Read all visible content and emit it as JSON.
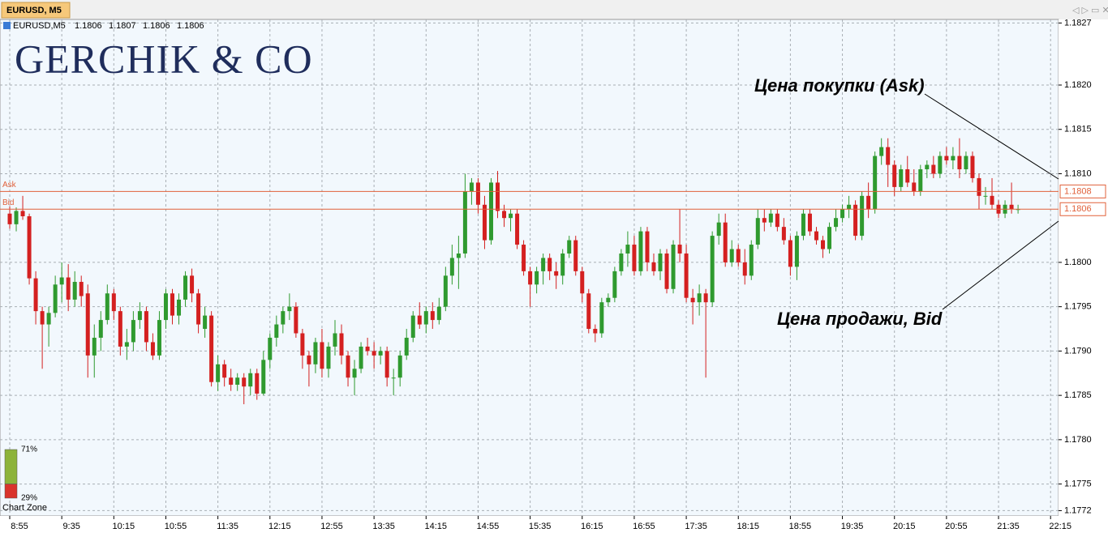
{
  "header": {
    "tab": "EURUSD, M5"
  },
  "chart_data": {
    "type": "candlestick",
    "symbol": "EURUSD,M5",
    "last_bar": [
      1.1806,
      1.1807,
      1.1806,
      1.1806
    ],
    "logo": "GERCHIK & CO",
    "categories": [
      "8:55",
      null,
      null,
      null,
      null,
      null,
      null,
      null,
      "9:35",
      null,
      null,
      null,
      null,
      null,
      null,
      null,
      "10:15",
      null,
      null,
      null,
      null,
      null,
      null,
      null,
      "10:55",
      null,
      null,
      null,
      null,
      null,
      null,
      null,
      "11:35",
      null,
      null,
      null,
      null,
      null,
      null,
      null,
      "12:15",
      null,
      null,
      null,
      null,
      null,
      null,
      null,
      "12:55",
      null,
      null,
      null,
      null,
      null,
      null,
      null,
      "13:35",
      null,
      null,
      null,
      null,
      null,
      null,
      null,
      "14:15",
      null,
      null,
      null,
      null,
      null,
      null,
      null,
      "14:55",
      null,
      null,
      null,
      null,
      null,
      null,
      null,
      "15:35",
      null,
      null,
      null,
      null,
      null,
      null,
      null,
      "16:15",
      null,
      null,
      null,
      null,
      null,
      null,
      null,
      "16:55",
      null,
      null,
      null,
      null,
      null,
      null,
      null,
      "17:35",
      null,
      null,
      null,
      null,
      null,
      null,
      null,
      "18:15",
      null,
      null,
      null,
      null,
      null,
      null,
      null,
      "18:55",
      null,
      null,
      null,
      null,
      null,
      null,
      null,
      "19:35",
      null,
      null,
      null,
      null,
      null,
      null,
      null,
      "20:15",
      null,
      null,
      null,
      null,
      null,
      null,
      null,
      "20:55",
      null,
      null,
      null,
      null,
      null,
      null,
      null,
      "21:35",
      null,
      null,
      null,
      null,
      null,
      null,
      null,
      "22:15"
    ],
    "candles": [
      [
        1.18055,
        1.18063,
        1.18038,
        1.18043
      ],
      [
        1.18043,
        1.18062,
        1.18035,
        1.18058
      ],
      [
        1.18058,
        1.18075,
        1.18048,
        1.18052
      ],
      [
        1.18052,
        1.18055,
        1.17975,
        1.17982
      ],
      [
        1.17982,
        1.1799,
        1.1793,
        1.17945
      ],
      [
        1.17945,
        1.1795,
        1.1788,
        1.1793
      ],
      [
        1.1793,
        1.1795,
        1.17905,
        1.17943
      ],
      [
        1.17943,
        1.17985,
        1.17938,
        1.17975
      ],
      [
        1.17975,
        1.18,
        1.17955,
        1.17983
      ],
      [
        1.17983,
        1.17998,
        1.17945,
        1.17958
      ],
      [
        1.17958,
        1.1799,
        1.1795,
        1.17978
      ],
      [
        1.17978,
        1.17985,
        1.1795,
        1.17962
      ],
      [
        1.17965,
        1.17975,
        1.1787,
        1.17895
      ],
      [
        1.17895,
        1.1793,
        1.1787,
        1.17915
      ],
      [
        1.17915,
        1.17945,
        1.179,
        1.17935
      ],
      [
        1.17935,
        1.17975,
        1.1793,
        1.17965
      ],
      [
        1.17965,
        1.1797,
        1.17935,
        1.17945
      ],
      [
        1.17945,
        1.1795,
        1.17895,
        1.17905
      ],
      [
        1.17905,
        1.17925,
        1.1789,
        1.1791
      ],
      [
        1.1791,
        1.17945,
        1.179,
        1.17935
      ],
      [
        1.17935,
        1.17955,
        1.17925,
        1.17945
      ],
      [
        1.17945,
        1.1795,
        1.179,
        1.1791
      ],
      [
        1.1791,
        1.1792,
        1.1789,
        1.17895
      ],
      [
        1.17895,
        1.17945,
        1.1789,
        1.17935
      ],
      [
        1.17935,
        1.1797,
        1.17925,
        1.17965
      ],
      [
        1.17965,
        1.1797,
        1.1793,
        1.1794
      ],
      [
        1.1794,
        1.17965,
        1.1793,
        1.17958
      ],
      [
        1.17958,
        1.1799,
        1.1795,
        1.17985
      ],
      [
        1.17985,
        1.17993,
        1.17955,
        1.17965
      ],
      [
        1.17965,
        1.1797,
        1.1792,
        1.1793
      ],
      [
        1.17925,
        1.1795,
        1.17915,
        1.1794
      ],
      [
        1.1794,
        1.17945,
        1.1786,
        1.17865
      ],
      [
        1.17865,
        1.17895,
        1.17855,
        1.17885
      ],
      [
        1.17885,
        1.1789,
        1.1786,
        1.1787
      ],
      [
        1.1787,
        1.1788,
        1.17855,
        1.17862
      ],
      [
        1.17862,
        1.17875,
        1.17855,
        1.1787
      ],
      [
        1.1787,
        1.17875,
        1.1784,
        1.1786
      ],
      [
        1.1786,
        1.1788,
        1.1785,
        1.17875
      ],
      [
        1.17875,
        1.1788,
        1.17845,
        1.17852
      ],
      [
        1.17852,
        1.179,
        1.1785,
        1.1789
      ],
      [
        1.1789,
        1.1792,
        1.1788,
        1.17915
      ],
      [
        1.17915,
        1.1794,
        1.17905,
        1.1793
      ],
      [
        1.1793,
        1.1795,
        1.1792,
        1.17945
      ],
      [
        1.17945,
        1.17965,
        1.17935,
        1.1795
      ],
      [
        1.1795,
        1.17955,
        1.17915,
        1.1792
      ],
      [
        1.1792,
        1.17925,
        1.1788,
        1.17895
      ],
      [
        1.17895,
        1.179,
        1.1786,
        1.17885
      ],
      [
        1.17885,
        1.17915,
        1.17875,
        1.1791
      ],
      [
        1.1791,
        1.17925,
        1.1787,
        1.1788
      ],
      [
        1.1788,
        1.1791,
        1.1787,
        1.17905
      ],
      [
        1.17905,
        1.17935,
        1.17895,
        1.1792
      ],
      [
        1.1792,
        1.1793,
        1.17885,
        1.17895
      ],
      [
        1.17895,
        1.179,
        1.1786,
        1.1787
      ],
      [
        1.1787,
        1.1789,
        1.1785,
        1.1788
      ],
      [
        1.1788,
        1.1791,
        1.17875,
        1.17905
      ],
      [
        1.17905,
        1.17915,
        1.17895,
        1.179
      ],
      [
        1.179,
        1.1791,
        1.1788,
        1.17895
      ],
      [
        1.17895,
        1.17905,
        1.17885,
        1.179
      ],
      [
        1.179,
        1.17905,
        1.1786,
        1.1787
      ],
      [
        1.1787,
        1.1788,
        1.1785,
        1.1787
      ],
      [
        1.1787,
        1.179,
        1.1786,
        1.17895
      ],
      [
        1.17895,
        1.17925,
        1.1789,
        1.17915
      ],
      [
        1.17915,
        1.17945,
        1.1791,
        1.1794
      ],
      [
        1.1794,
        1.17955,
        1.17925,
        1.1793
      ],
      [
        1.1793,
        1.1795,
        1.1792,
        1.17945
      ],
      [
        1.17945,
        1.17955,
        1.17925,
        1.17935
      ],
      [
        1.17935,
        1.1796,
        1.1793,
        1.1795
      ],
      [
        1.1795,
        1.17995,
        1.17945,
        1.17985
      ],
      [
        1.17985,
        1.1802,
        1.17975,
        1.18005
      ],
      [
        1.18005,
        1.1803,
        1.1797,
        1.1801
      ],
      [
        1.1801,
        1.181,
        1.18005,
        1.1808
      ],
      [
        1.1808,
        1.18095,
        1.18065,
        1.1809
      ],
      [
        1.1809,
        1.18095,
        1.18055,
        1.18065
      ],
      [
        1.18065,
        1.18075,
        1.18015,
        1.18025
      ],
      [
        1.18025,
        1.18095,
        1.1802,
        1.1809
      ],
      [
        1.1809,
        1.18103,
        1.1805,
        1.18058
      ],
      [
        1.18058,
        1.18065,
        1.1804,
        1.1805
      ],
      [
        1.1805,
        1.1806,
        1.18035,
        1.18055
      ],
      [
        1.18055,
        1.1806,
        1.18015,
        1.1802
      ],
      [
        1.1802,
        1.18025,
        1.17985,
        1.1799
      ],
      [
        1.1799,
        1.17995,
        1.1795,
        1.17975
      ],
      [
        1.17975,
        1.17995,
        1.17965,
        1.1799
      ],
      [
        1.1799,
        1.1801,
        1.17975,
        1.18005
      ],
      [
        1.18005,
        1.1801,
        1.1798,
        1.1799
      ],
      [
        1.1799,
        1.18,
        1.1797,
        1.17985
      ],
      [
        1.17985,
        1.18015,
        1.17975,
        1.1801
      ],
      [
        1.1801,
        1.1803,
        1.18005,
        1.18025
      ],
      [
        1.18025,
        1.1803,
        1.17985,
        1.1799
      ],
      [
        1.1799,
        1.17995,
        1.17955,
        1.17965
      ],
      [
        1.17965,
        1.1797,
        1.1792,
        1.17925
      ],
      [
        1.17925,
        1.1793,
        1.1791,
        1.1792
      ],
      [
        1.1792,
        1.1796,
        1.17915,
        1.17955
      ],
      [
        1.17955,
        1.17965,
        1.1795,
        1.1796
      ],
      [
        1.1796,
        1.17995,
        1.17955,
        1.1799
      ],
      [
        1.1799,
        1.18015,
        1.17985,
        1.1801
      ],
      [
        1.1801,
        1.18035,
        1.17995,
        1.1802
      ],
      [
        1.1802,
        1.1803,
        1.17985,
        1.1799
      ],
      [
        1.1799,
        1.1804,
        1.17985,
        1.18035
      ],
      [
        1.18035,
        1.1804,
        1.1799,
        1.18
      ],
      [
        1.18,
        1.1801,
        1.17985,
        1.1799
      ],
      [
        1.1799,
        1.18015,
        1.1798,
        1.1801
      ],
      [
        1.1801,
        1.18015,
        1.17965,
        1.1797
      ],
      [
        1.1797,
        1.18025,
        1.17965,
        1.1802
      ],
      [
        1.1802,
        1.1806,
        1.18,
        1.1801
      ],
      [
        1.1801,
        1.1802,
        1.17955,
        1.1796
      ],
      [
        1.1796,
        1.1797,
        1.1793,
        1.17955
      ],
      [
        1.17955,
        1.17975,
        1.1794,
        1.17965
      ],
      [
        1.17965,
        1.1797,
        1.1787,
        1.17955
      ],
      [
        1.17955,
        1.18035,
        1.1795,
        1.1803
      ],
      [
        1.1803,
        1.18055,
        1.1802,
        1.18045
      ],
      [
        1.18045,
        1.18055,
        1.17995,
        1.18
      ],
      [
        1.18,
        1.18025,
        1.17995,
        1.18015
      ],
      [
        1.18015,
        1.1802,
        1.17995,
        1.18
      ],
      [
        1.18,
        1.18015,
        1.17975,
        1.17985
      ],
      [
        1.17985,
        1.18025,
        1.1798,
        1.1802
      ],
      [
        1.1802,
        1.1806,
        1.18015,
        1.1805
      ],
      [
        1.1805,
        1.1806,
        1.18035,
        1.18045
      ],
      [
        1.18045,
        1.1806,
        1.1804,
        1.18055
      ],
      [
        1.18055,
        1.1806,
        1.18035,
        1.1804
      ],
      [
        1.1804,
        1.1805,
        1.1802,
        1.18025
      ],
      [
        1.18025,
        1.1803,
        1.17985,
        1.17995
      ],
      [
        1.17995,
        1.18035,
        1.1798,
        1.1803
      ],
      [
        1.1803,
        1.1806,
        1.18025,
        1.18055
      ],
      [
        1.18055,
        1.1806,
        1.1803,
        1.18035
      ],
      [
        1.18035,
        1.1804,
        1.1802,
        1.18025
      ],
      [
        1.18025,
        1.1803,
        1.18005,
        1.18015
      ],
      [
        1.18015,
        1.18045,
        1.1801,
        1.1804
      ],
      [
        1.1804,
        1.1806,
        1.18035,
        1.1805
      ],
      [
        1.1805,
        1.18065,
        1.18045,
        1.1806
      ],
      [
        1.1806,
        1.18075,
        1.1805,
        1.18065
      ],
      [
        1.18065,
        1.1807,
        1.18025,
        1.1803
      ],
      [
        1.1803,
        1.1808,
        1.18025,
        1.18075
      ],
      [
        1.18075,
        1.1809,
        1.1805,
        1.1806
      ],
      [
        1.1806,
        1.18125,
        1.18055,
        1.1812
      ],
      [
        1.1812,
        1.1814,
        1.1811,
        1.1813
      ],
      [
        1.1813,
        1.1814,
        1.18085,
        1.1811
      ],
      [
        1.1811,
        1.18115,
        1.18075,
        1.18085
      ],
      [
        1.18085,
        1.1811,
        1.1808,
        1.18105
      ],
      [
        1.18105,
        1.1812,
        1.18085,
        1.1809
      ],
      [
        1.1809,
        1.18105,
        1.18075,
        1.1808
      ],
      [
        1.1808,
        1.1811,
        1.18075,
        1.18105
      ],
      [
        1.18105,
        1.18115,
        1.18095,
        1.1811
      ],
      [
        1.1811,
        1.1812,
        1.18095,
        1.181
      ],
      [
        1.181,
        1.18125,
        1.18095,
        1.1812
      ],
      [
        1.1812,
        1.1813,
        1.1811,
        1.18115
      ],
      [
        1.18115,
        1.1813,
        1.18105,
        1.1812
      ],
      [
        1.1812,
        1.1814,
        1.18095,
        1.18105
      ],
      [
        1.18105,
        1.18125,
        1.181,
        1.1812
      ],
      [
        1.1812,
        1.18125,
        1.1809,
        1.18095
      ],
      [
        1.18095,
        1.181,
        1.1806,
        1.18075
      ],
      [
        1.18075,
        1.18085,
        1.18065,
        1.18075
      ],
      [
        1.18075,
        1.18095,
        1.1806,
        1.18065
      ],
      [
        1.18065,
        1.1807,
        1.1805,
        1.18055
      ],
      [
        1.18055,
        1.1807,
        1.1805,
        1.18065
      ],
      [
        1.18065,
        1.1809,
        1.18055,
        1.1806
      ],
      [
        1.1806,
        1.18065,
        1.18055,
        1.1806
      ],
      null,
      null,
      null,
      null,
      null
    ],
    "up_color": "#2f9a2f",
    "down_color": "#d42020",
    "ylim": [
      1.17714,
      1.18274
    ],
    "yticks": [
      {
        "value": 1.1827,
        "label": "1.1827"
      },
      {
        "value": 1.182,
        "label": "1.1820"
      },
      1.1815,
      {
        "value": 1.181,
        "label": "1.1810"
      },
      {
        "value": 1.18,
        "label": "1.1800"
      },
      1.1795,
      {
        "value": 1.179,
        "label": "1.1790"
      },
      1.1785,
      {
        "value": 1.178,
        "label": "1.1780"
      },
      1.1775,
      1.1772
    ],
    "grid": true,
    "ask": {
      "label": "Ask",
      "value": 1.1808,
      "color": "#e0603a"
    },
    "bid": {
      "label": "Bid",
      "value": 1.1806,
      "color": "#e0603a"
    },
    "annotations": [
      "Цена покупки (Ask)",
      "Цена продажи, Bid"
    ],
    "zone": {
      "title": "Chart Zone",
      "values": [
        71,
        29
      ],
      "value_labels": [
        "71%",
        "29%"
      ],
      "colors": [
        "#8db33a",
        "#d9332b"
      ]
    }
  }
}
